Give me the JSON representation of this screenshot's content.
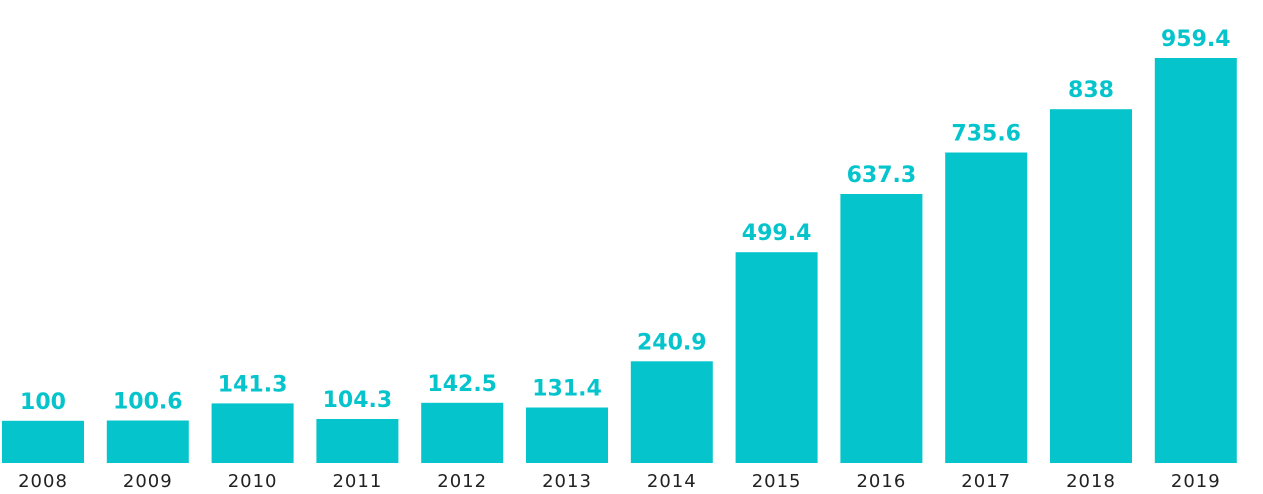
{
  "chart_data": {
    "type": "bar",
    "categories": [
      "2008",
      "2009",
      "2010",
      "2011",
      "2012",
      "2013",
      "2014",
      "2015",
      "2016",
      "2017",
      "2018",
      "2019"
    ],
    "values": [
      100,
      100.6,
      141.3,
      104.3,
      142.5,
      131.4,
      240.9,
      499.4,
      637.3,
      735.6,
      838,
      959.4
    ],
    "value_labels": [
      "100",
      "100.6",
      "141.3",
      "104.3",
      "142.5",
      "131.4",
      "240.9",
      "499.4",
      "637.3",
      "735.6",
      "838",
      "959.4"
    ],
    "title": "",
    "xlabel": "",
    "ylabel": "",
    "ylim": [
      0,
      959.4
    ],
    "grid": false,
    "legend": "none",
    "bar_color": "#06c4cc",
    "label_color": "#06c4cc"
  }
}
